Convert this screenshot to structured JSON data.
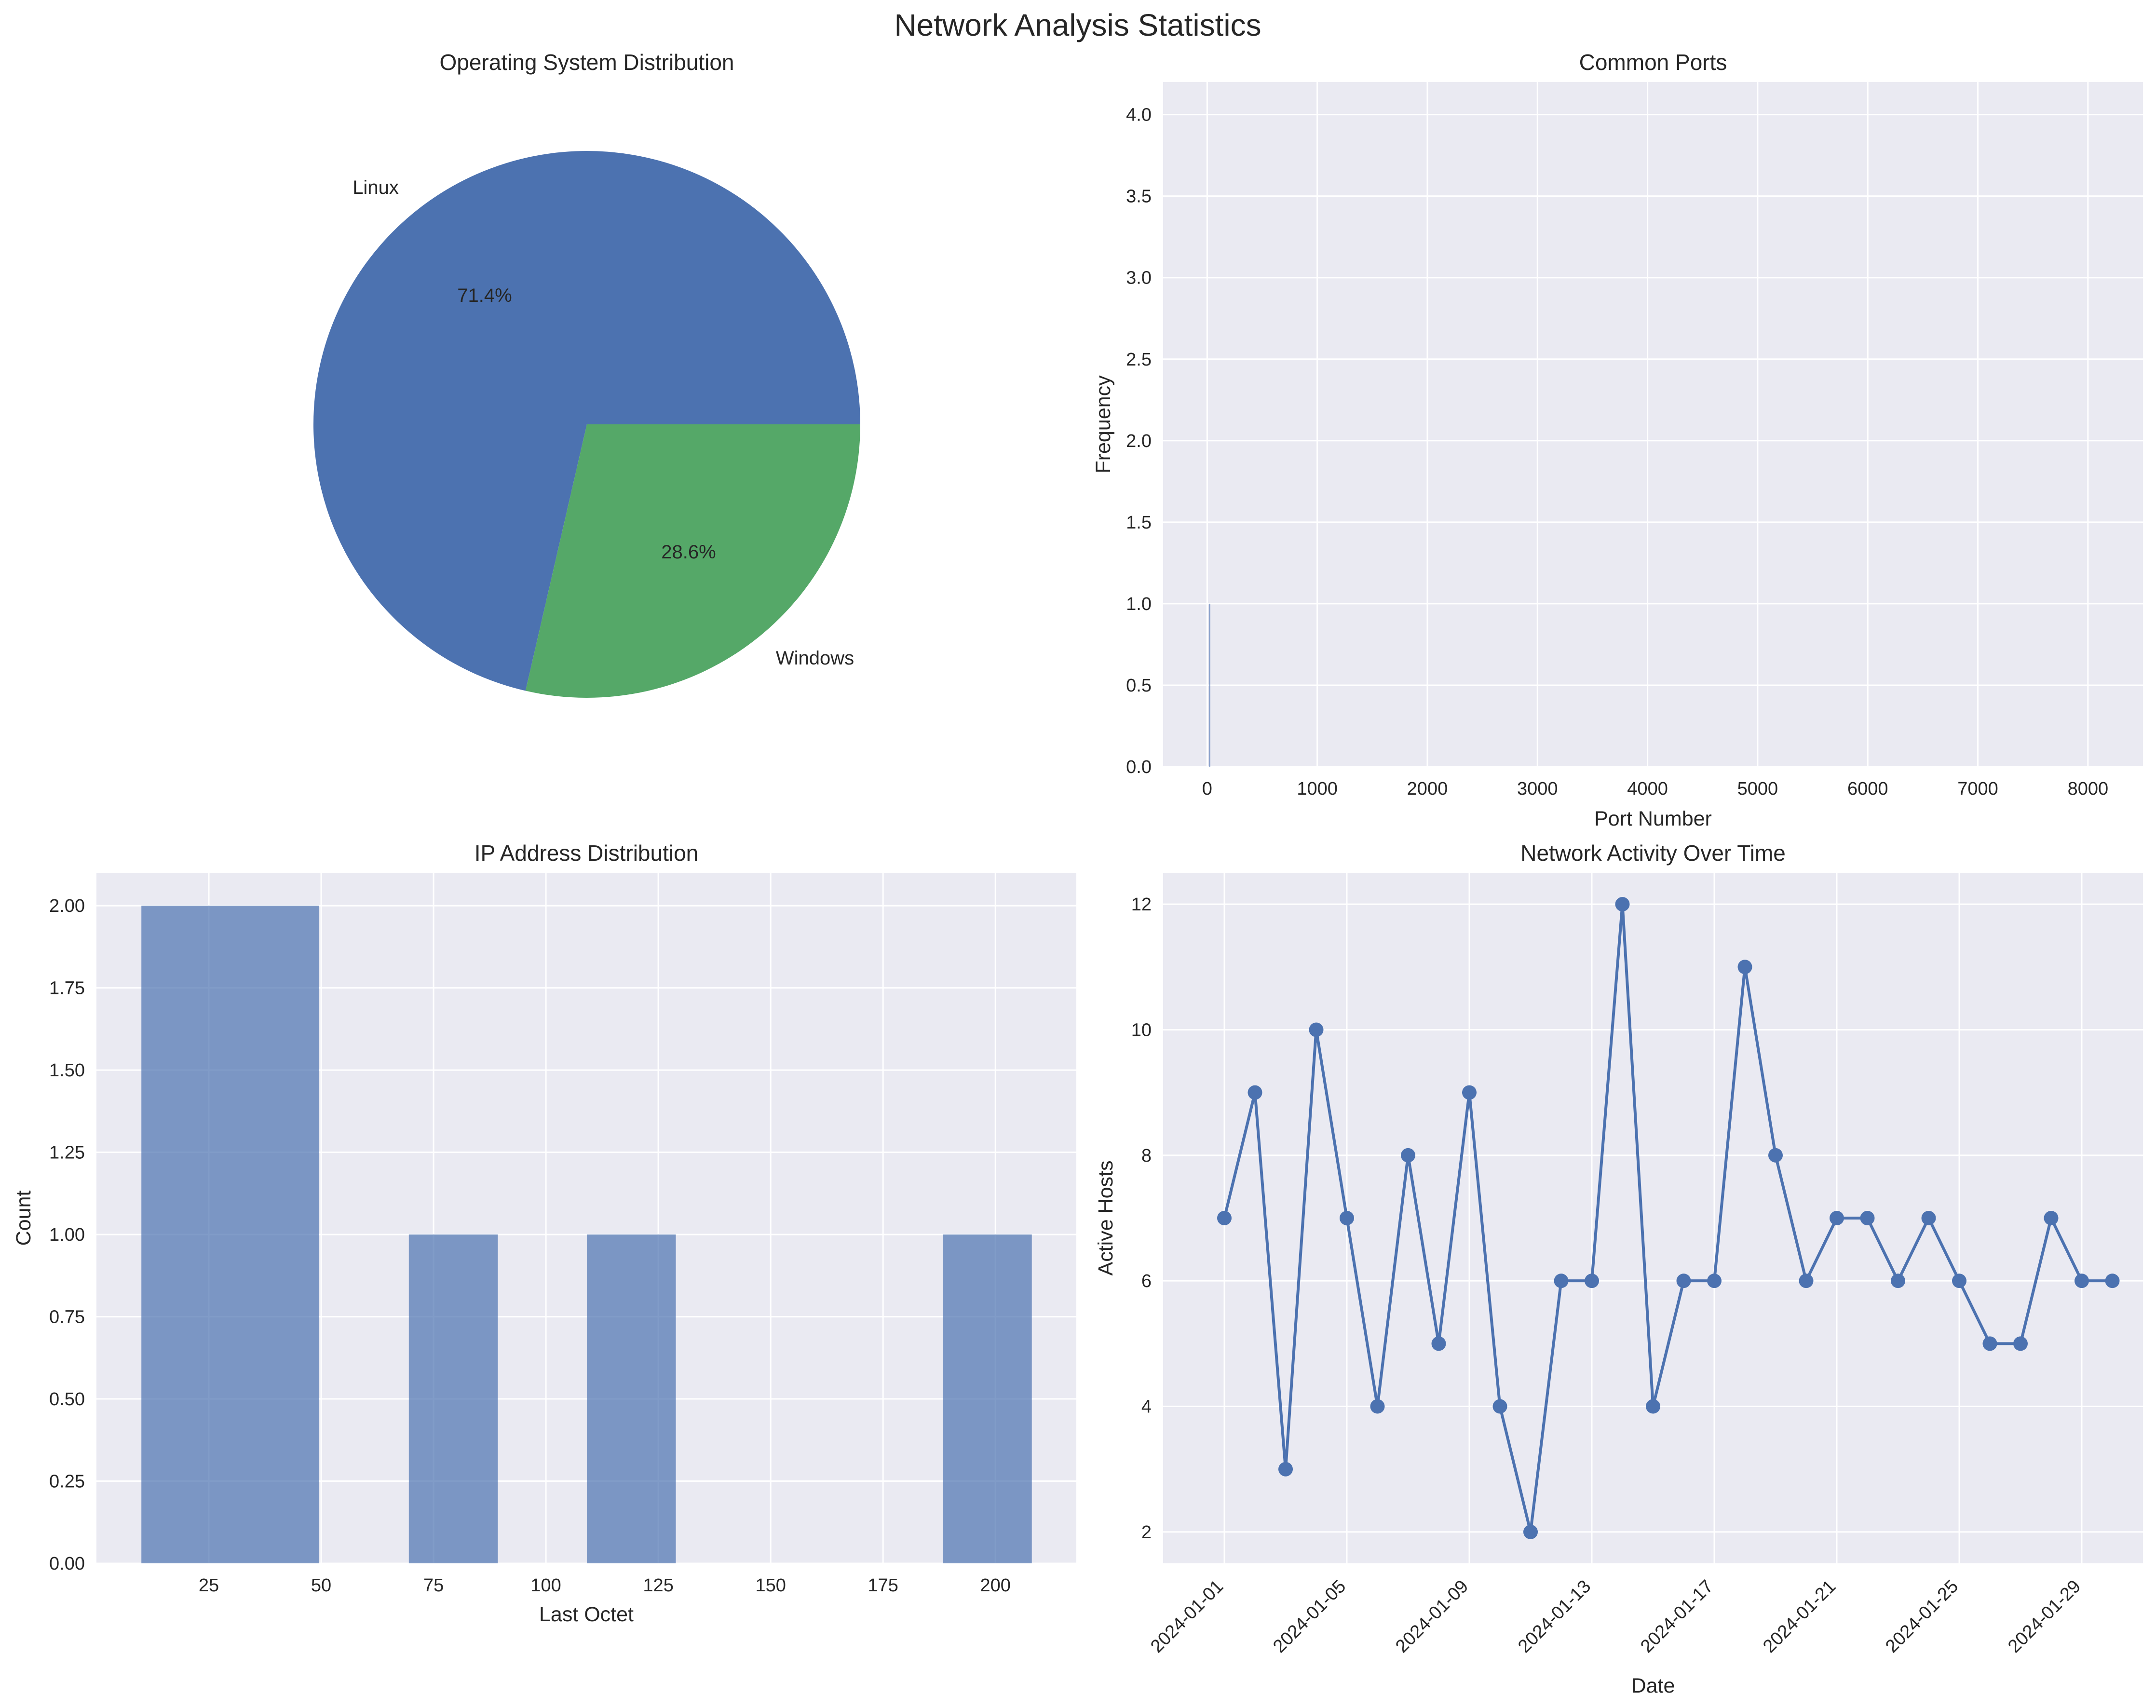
{
  "figure": {
    "title": "Network Analysis Statistics"
  },
  "chart_data": [
    {
      "type": "pie",
      "title": "Operating System Distribution",
      "labels": [
        "Linux",
        "Windows"
      ],
      "values": [
        71.4,
        28.6
      ],
      "pct_labels": [
        "71.4%",
        "28.6%"
      ],
      "colors": [
        "#4c72b0",
        "#55a868"
      ]
    },
    {
      "type": "bar",
      "title": "Common Ports",
      "xlabel": "Port Number",
      "ylabel": "Frequency",
      "xlim": [
        -400,
        8500
      ],
      "ylim": [
        0,
        4.2
      ],
      "xticks": [
        0,
        1000,
        2000,
        3000,
        4000,
        5000,
        6000,
        7000,
        8000
      ],
      "yticks": [
        0.0,
        0.5,
        1.0,
        1.5,
        2.0,
        2.5,
        3.0,
        3.5,
        4.0
      ],
      "bars": [
        {
          "x": 22,
          "value": 1
        }
      ],
      "color": "#4c72b0",
      "grid": true
    },
    {
      "type": "bar",
      "title": "IP Address Distribution",
      "xlabel": "Last Octet",
      "ylabel": "Count",
      "xlim": [
        0,
        218
      ],
      "ylim": [
        0,
        2.1
      ],
      "xticks": [
        25,
        50,
        75,
        100,
        125,
        150,
        175,
        200
      ],
      "yticks": [
        0.0,
        0.25,
        0.5,
        0.75,
        1.0,
        1.25,
        1.5,
        1.75,
        2.0
      ],
      "bins": [
        {
          "start": 10,
          "end": 49.5,
          "count": 2
        },
        {
          "start": 69.5,
          "end": 89.3,
          "count": 1
        },
        {
          "start": 109.1,
          "end": 128.9,
          "count": 1
        },
        {
          "start": 188.3,
          "end": 208.1,
          "count": 1
        }
      ],
      "color": "#4c72b0",
      "alpha": 0.7,
      "grid": true
    },
    {
      "type": "line",
      "title": "Network Activity Over Time",
      "xlabel": "Date",
      "ylabel": "Active Hosts",
      "ylim": [
        1.5,
        12.5
      ],
      "yticks": [
        2,
        4,
        6,
        8,
        10,
        12
      ],
      "x": [
        "2024-01-01",
        "2024-01-02",
        "2024-01-03",
        "2024-01-04",
        "2024-01-05",
        "2024-01-06",
        "2024-01-07",
        "2024-01-08",
        "2024-01-09",
        "2024-01-10",
        "2024-01-11",
        "2024-01-12",
        "2024-01-13",
        "2024-01-14",
        "2024-01-15",
        "2024-01-16",
        "2024-01-17",
        "2024-01-18",
        "2024-01-19",
        "2024-01-20",
        "2024-01-21",
        "2024-01-22",
        "2024-01-23",
        "2024-01-24",
        "2024-01-25",
        "2024-01-26",
        "2024-01-27",
        "2024-01-28",
        "2024-01-29",
        "2024-01-30"
      ],
      "xlim": [
        "2023-12-30",
        "2024-01-31"
      ],
      "xticks": [
        "2024-01-01",
        "2024-01-05",
        "2024-01-09",
        "2024-01-13",
        "2024-01-17",
        "2024-01-21",
        "2024-01-25",
        "2024-01-29"
      ],
      "values": [
        7,
        9,
        3,
        10,
        7,
        4,
        8,
        5,
        9,
        4,
        2,
        6,
        6,
        12,
        4,
        6,
        6,
        11,
        8,
        6,
        7,
        7,
        6,
        7,
        6,
        5,
        5,
        7,
        6,
        6
      ],
      "color": "#4c72b0",
      "marker": "circle",
      "grid": true
    }
  ]
}
